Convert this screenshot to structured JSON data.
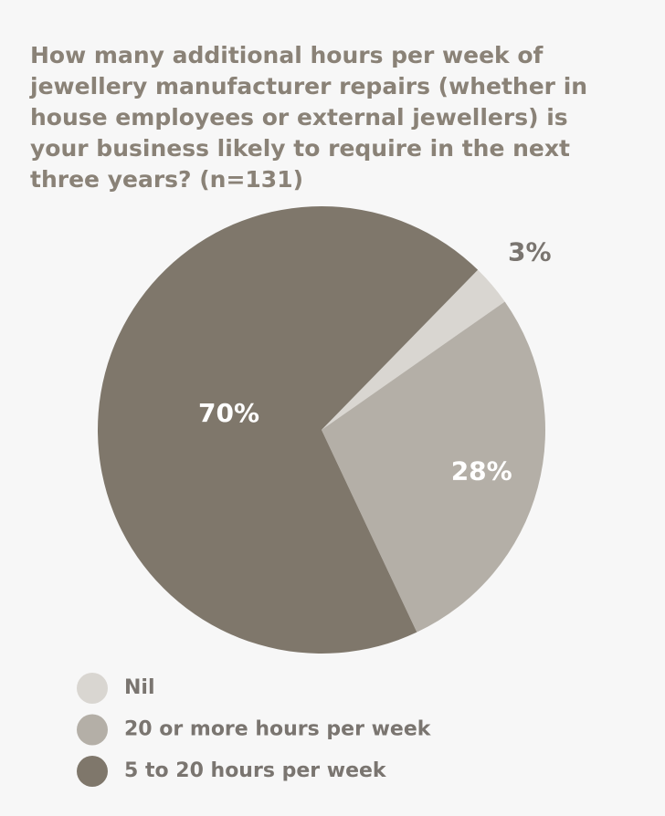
{
  "chart_data": {
    "type": "pie",
    "title": "How many additional hours per week of jewellery manufacturer repairs (whether in house employees or external jewellers) is your business likely to require in the next three years? (n=131)",
    "categories": [
      "Nil",
      "20 or more hours per week",
      "5 to 20 hours per week"
    ],
    "values": [
      3,
      28,
      70
    ],
    "value_labels": [
      "3%",
      "28%",
      "70%"
    ],
    "colors": [
      "#d9d6d1",
      "#b4afa7",
      "#7f776b"
    ],
    "legend": "bottom"
  }
}
